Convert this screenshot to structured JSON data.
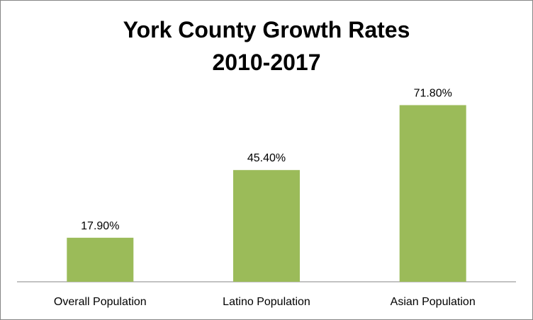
{
  "chart_data": {
    "type": "bar",
    "title": "York County Growth Rates",
    "subtitle": "2010-2017",
    "categories": [
      "Overall Population",
      "Latino Population",
      "Asian Population"
    ],
    "values": [
      17.9,
      45.4,
      71.8
    ],
    "value_labels": [
      "17.90%",
      "45.40%",
      "71.80%"
    ],
    "xlabel": "",
    "ylabel": "",
    "ylim": [
      0,
      80
    ],
    "grid": false,
    "legend": "none",
    "bar_color": "#9BBB59"
  }
}
